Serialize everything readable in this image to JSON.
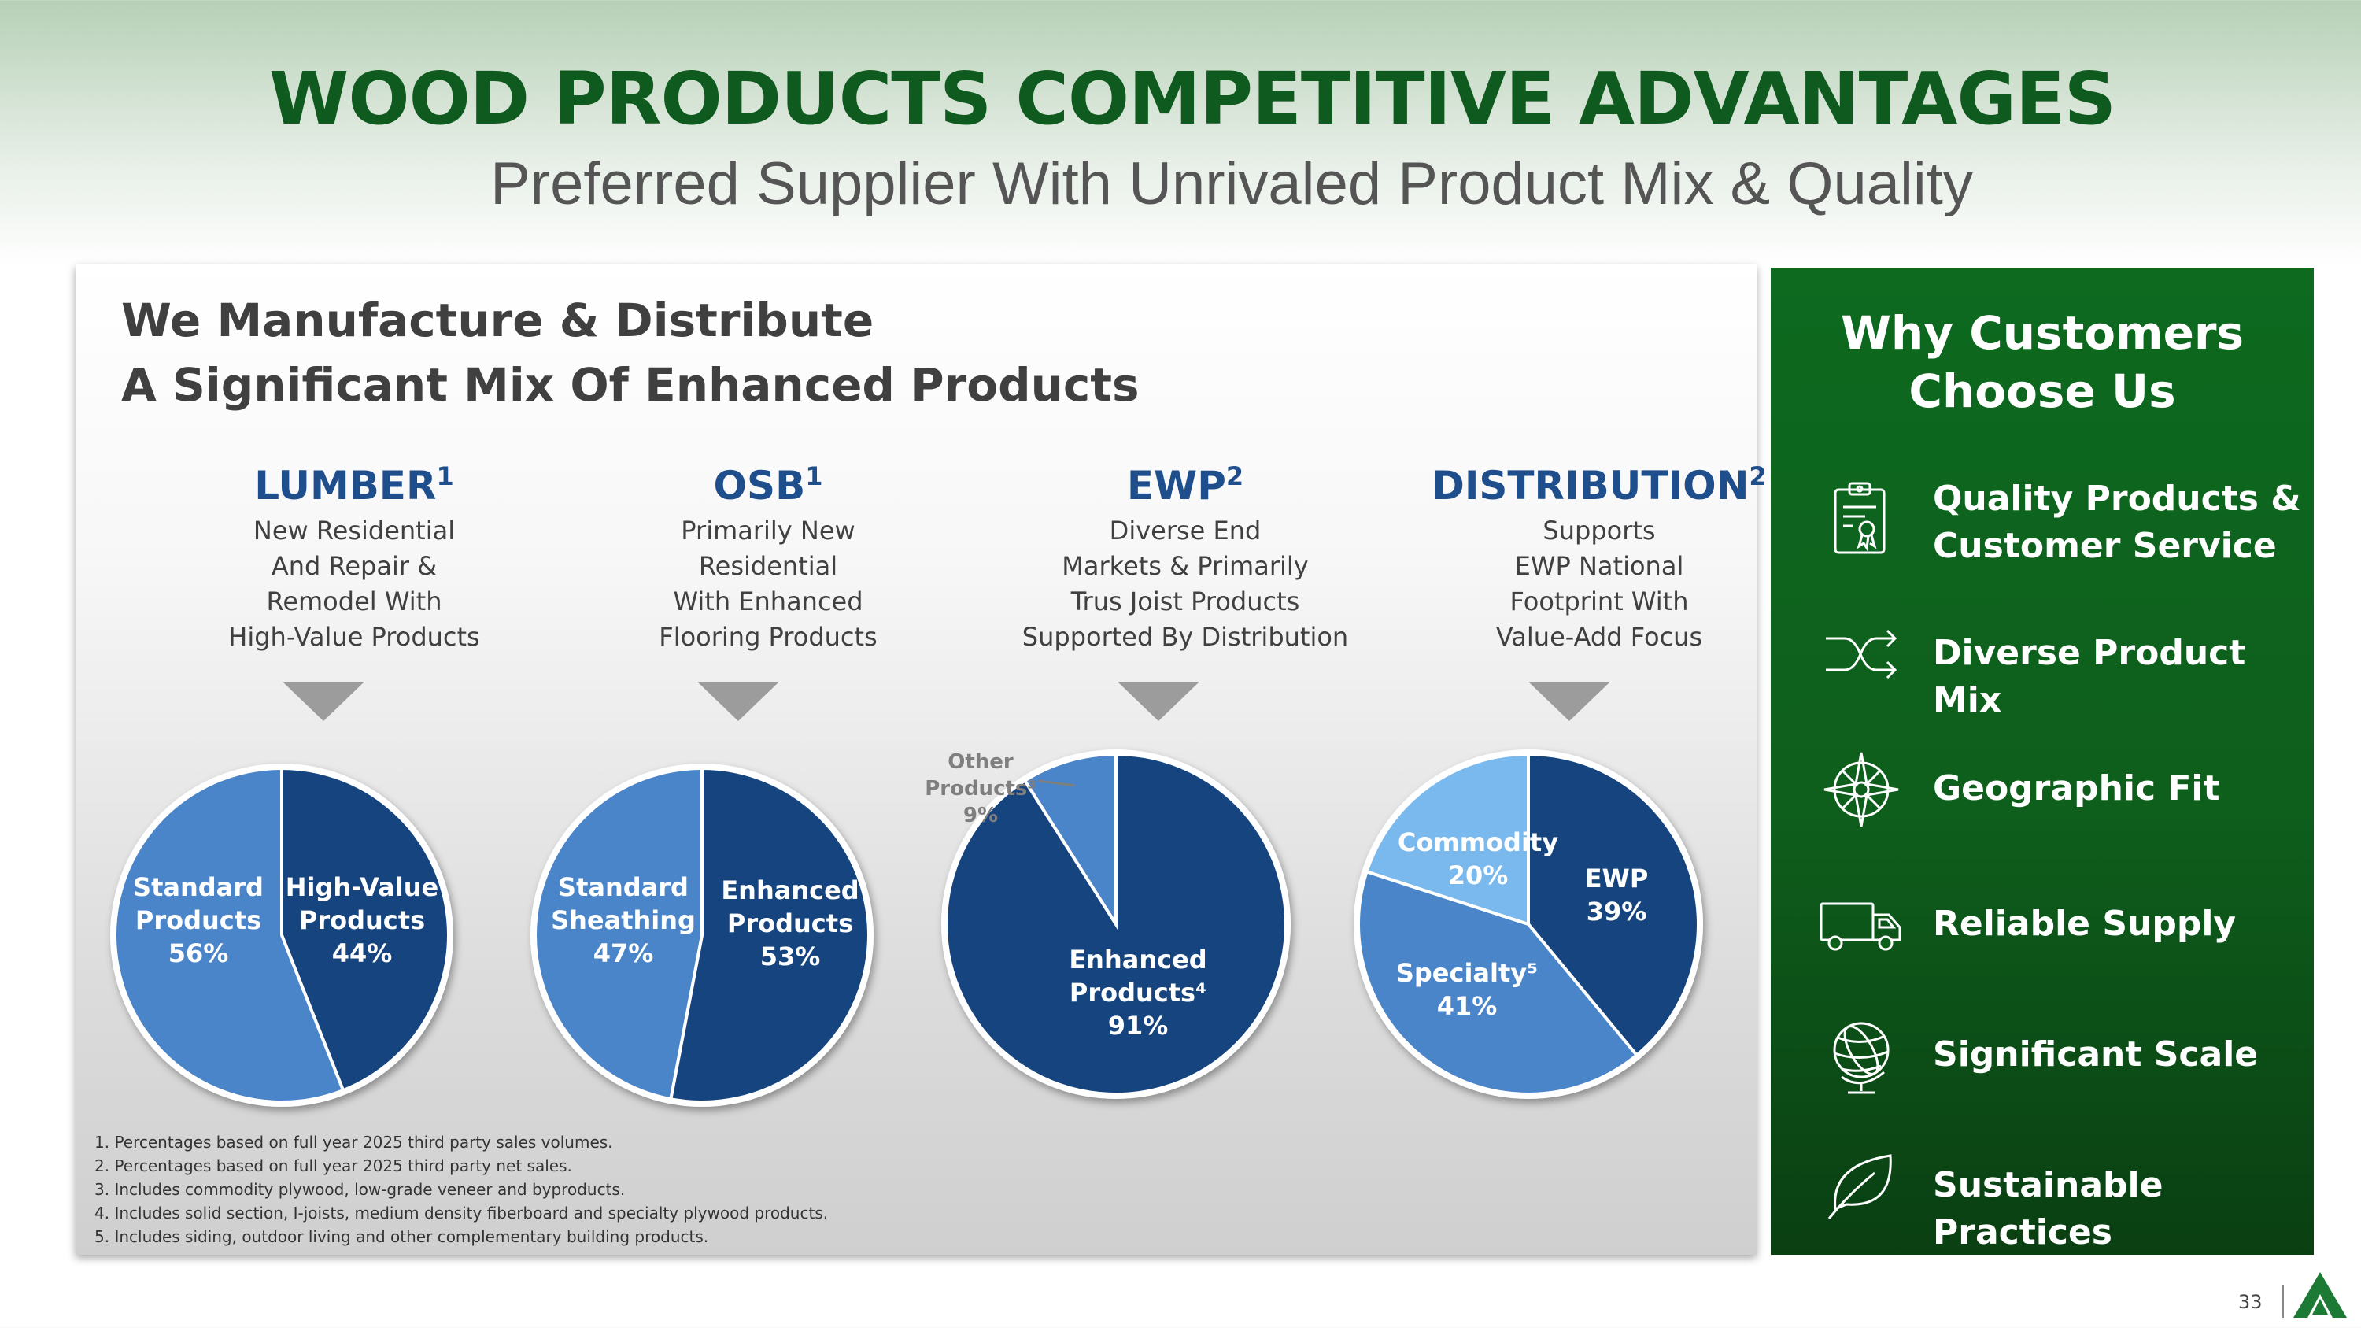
{
  "title": "WOOD PRODUCTS COMPETITIVE ADVANTAGES",
  "subtitle": "Preferred Supplier With Unrivaled Product Mix & Quality",
  "panel": {
    "title_line1": "We Manufacture & Distribute",
    "title_line2": "A Significant Mix Of Enhanced Products"
  },
  "segments": [
    {
      "name": "LUMBER",
      "note": "1",
      "description": "New Residential\nAnd Repair &\nRemodel With\nHigh-Value Products"
    },
    {
      "name": "OSB",
      "note": "1",
      "description": "Primarily New\nResidential\nWith Enhanced\nFlooring Products"
    },
    {
      "name": "EWP",
      "note": "2",
      "description": "Diverse End\nMarkets & Primarily\nTrus Joist Products\nSupported By Distribution"
    },
    {
      "name": "DISTRIBUTION",
      "note": "2",
      "description": "Supports\nEWP National\nFootprint With\nValue-Add Focus"
    }
  ],
  "chart_data": [
    {
      "type": "pie",
      "title": "LUMBER",
      "slices": [
        {
          "label": "High-Value Products",
          "value": 44,
          "value_label": "44%",
          "color": "#16447f"
        },
        {
          "label": "Standard Products",
          "value": 56,
          "value_label": "56%",
          "color": "#4a85c9"
        }
      ]
    },
    {
      "type": "pie",
      "title": "OSB",
      "slices": [
        {
          "label": "Enhanced Products",
          "value": 53,
          "value_label": "53%",
          "color": "#16447f"
        },
        {
          "label": "Standard Sheathing",
          "value": 47,
          "value_label": "47%",
          "color": "#4a85c9"
        }
      ]
    },
    {
      "type": "pie",
      "title": "EWP",
      "slices": [
        {
          "label": "Enhanced Products⁴",
          "value": 91,
          "value_label": "91%",
          "color": "#16447f"
        },
        {
          "label": "Other Products³",
          "value": 9,
          "value_label": "9%",
          "color": "#4a85c9"
        }
      ]
    },
    {
      "type": "pie",
      "title": "DISTRIBUTION",
      "slices": [
        {
          "label": "EWP",
          "value": 39,
          "value_label": "39%",
          "color": "#16447f"
        },
        {
          "label": "Specialty⁵",
          "value": 41,
          "value_label": "41%",
          "color": "#4a85c9"
        },
        {
          "label": "Commodity",
          "value": 20,
          "value_label": "20%",
          "color": "#79b9ee"
        }
      ]
    }
  ],
  "footnotes": [
    "1. Percentages based on full year 2025 third party sales volumes.",
    "2. Percentages based on full year 2025 third party net sales.",
    "3. Includes commodity plywood, low-grade veneer and byproducts.",
    "4. Includes solid section, I-joists, medium density fiberboard and specialty plywood products.",
    "5. Includes siding, outdoor living and other complementary building products."
  ],
  "sidebar": {
    "title_line1": "Why Customers",
    "title_line2": "Choose Us",
    "items": [
      {
        "icon": "certificate-icon",
        "label": "Quality Products &\nCustomer Service"
      },
      {
        "icon": "shuffle-icon",
        "label": "Diverse Product Mix"
      },
      {
        "icon": "compass-icon",
        "label": "Geographic Fit"
      },
      {
        "icon": "truck-icon",
        "label": "Reliable Supply"
      },
      {
        "icon": "globe-icon",
        "label": "Significant Scale"
      },
      {
        "icon": "leaf-icon",
        "label": "Sustainable Practices"
      }
    ]
  },
  "page_number": "33"
}
